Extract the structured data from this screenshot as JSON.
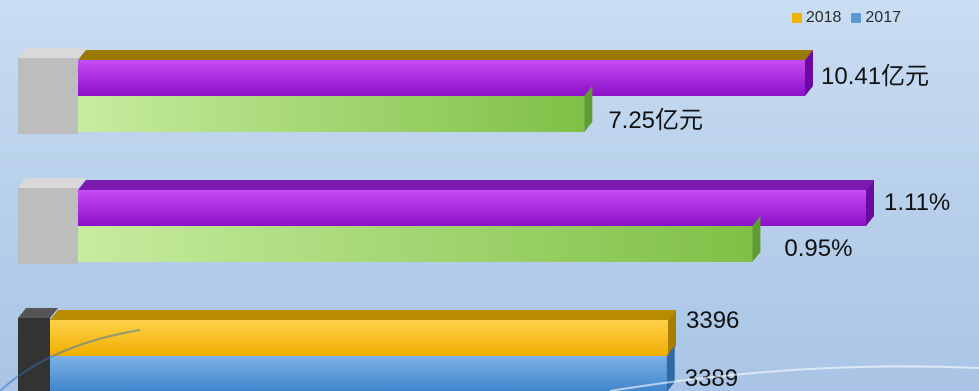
{
  "chart_data": {
    "type": "bar",
    "orientation": "horizontal",
    "legend_position": "top-right",
    "grid": false,
    "colors": {
      "2018": "#f0b400",
      "2017": "#5b9bd5",
      "group1_2018_face": "#a11be0",
      "group1_2017_face": "#8ccf5a",
      "background": "#bcd3ee",
      "axis_block": "#bdbdbd",
      "axis_block_dark": "#333333"
    },
    "series": [
      {
        "name": "2018",
        "values": [
          "10.41亿元",
          "1.11%",
          "3396"
        ]
      },
      {
        "name": "2017",
        "values": [
          "7.25亿元",
          "0.95%",
          "3389"
        ]
      }
    ],
    "numeric_values": [
      {
        "2018": 10.41,
        "2017": 7.25
      },
      {
        "2018": 1.11,
        "2017": 0.95
      },
      {
        "2018": 3396,
        "2017": 3389
      }
    ]
  },
  "legend": [
    {
      "label": "2018",
      "color": "#f0b400"
    },
    {
      "label": "2017",
      "color": "#5b9bd5"
    }
  ]
}
